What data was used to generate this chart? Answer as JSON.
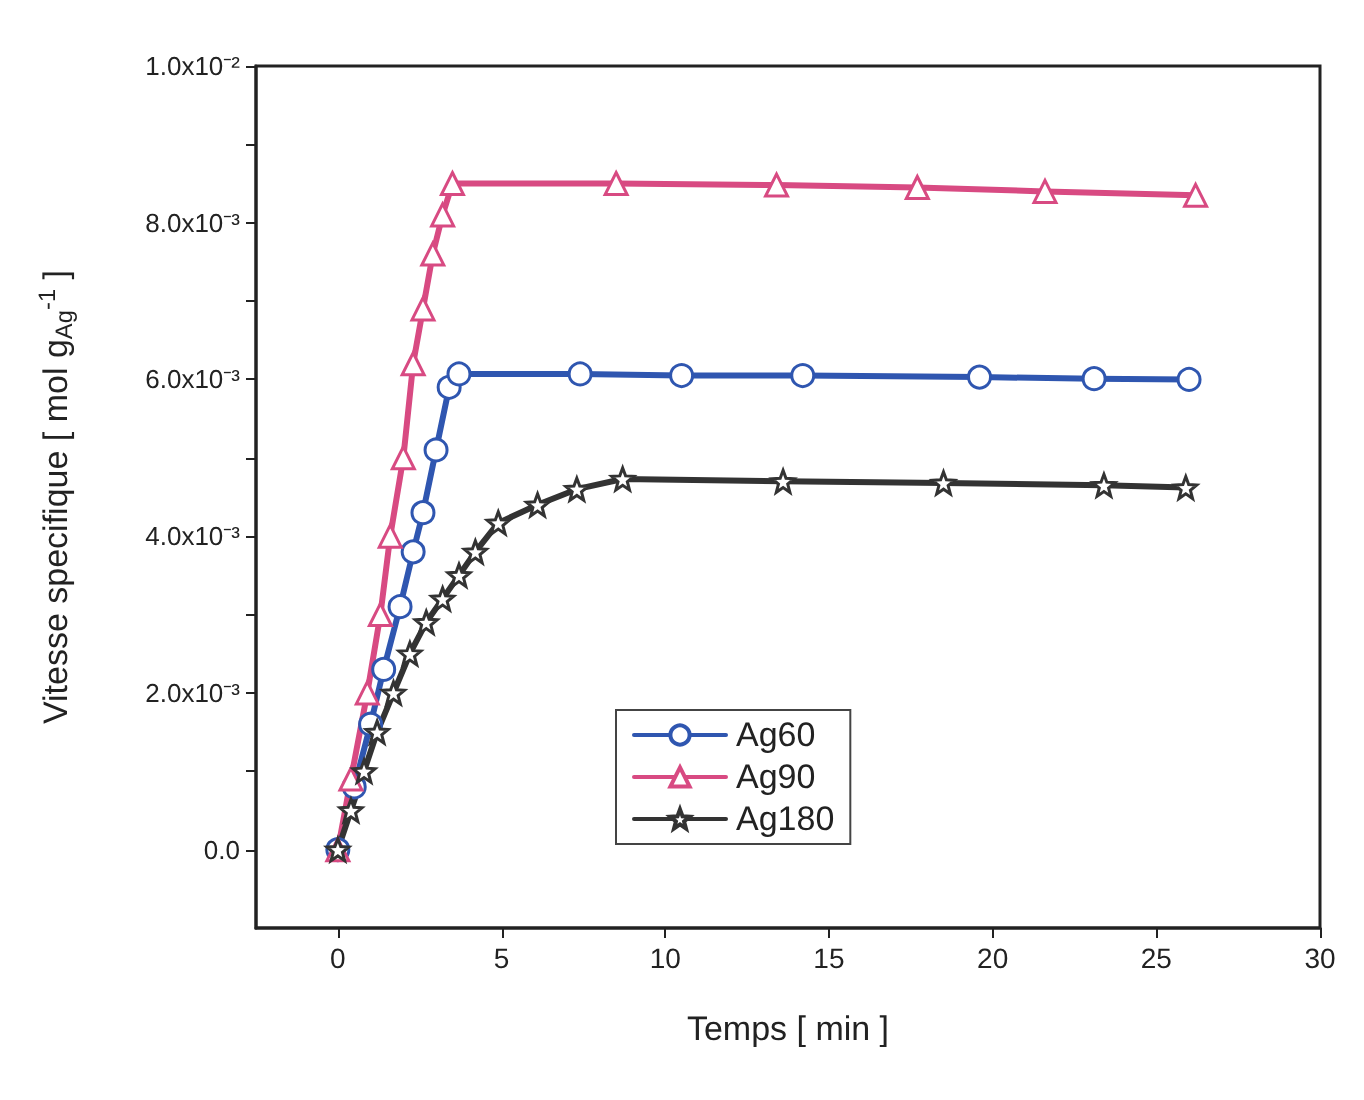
{
  "chart_data": {
    "type": "line",
    "xlabel": "Temps [ min ]",
    "ylabel": "Vitesse specifique [ mol g$_{Ag}$$^{-1}$ ]",
    "xlim": [
      -2.5,
      30
    ],
    "xticks": [
      0,
      5,
      10,
      15,
      20,
      25,
      30
    ],
    "ylim": [
      -0.001,
      0.01
    ],
    "yticks": [
      {
        "value": 0,
        "label": "0.0"
      },
      {
        "value": 0.001,
        "label": null
      },
      {
        "value": 0.002,
        "label": "2.0x10⁻³"
      },
      {
        "value": 0.003,
        "label": null
      },
      {
        "value": 0.004,
        "label": "4.0x10⁻³"
      },
      {
        "value": 0.005,
        "label": null
      },
      {
        "value": 0.006,
        "label": "6.0x10⁻³"
      },
      {
        "value": 0.007,
        "label": null
      },
      {
        "value": 0.008,
        "label": "8.0x10⁻³"
      },
      {
        "value": 0.009,
        "label": null
      },
      {
        "value": 0.01,
        "label": "1.0x10⁻²"
      }
    ],
    "grid": false,
    "legend": "bottom",
    "line_style": "solid",
    "series": [
      {
        "name": "Ag60",
        "color": "#2f56b0",
        "marker": "circle",
        "x": [
          0,
          0.5,
          1.0,
          1.4,
          1.9,
          2.3,
          2.6,
          3.0,
          3.4,
          3.7,
          7.4,
          10.5,
          14.2,
          19.6,
          23.1,
          26.0
        ],
        "values": [
          0,
          0.0008,
          0.0016,
          0.0023,
          0.0031,
          0.0038,
          0.0043,
          0.0051,
          0.0059,
          0.00607,
          0.00607,
          0.00605,
          0.00605,
          0.00603,
          0.00601,
          0.006
        ]
      },
      {
        "name": "Ag90",
        "color": "#d84a82",
        "marker": "triangle",
        "x": [
          0,
          0.4,
          0.9,
          1.3,
          1.6,
          2.0,
          2.3,
          2.6,
          2.9,
          3.2,
          3.5,
          8.5,
          13.4,
          17.7,
          21.6,
          26.2
        ],
        "values": [
          0,
          0.0009,
          0.002,
          0.003,
          0.004,
          0.005,
          0.0062,
          0.0069,
          0.0076,
          0.0081,
          0.0085,
          0.0085,
          0.00848,
          0.00845,
          0.0084,
          0.00835
        ]
      },
      {
        "name": "Ag180",
        "color": "#333333",
        "marker": "star",
        "x": [
          0,
          0.4,
          0.8,
          1.2,
          1.7,
          2.2,
          2.7,
          3.2,
          3.7,
          4.2,
          4.9,
          6.1,
          7.3,
          8.7,
          13.6,
          18.5,
          23.4,
          25.9
        ],
        "values": [
          0,
          0.0005,
          0.001,
          0.0015,
          0.002,
          0.0025,
          0.0029,
          0.0032,
          0.0035,
          0.0038,
          0.00417,
          0.0044,
          0.0046,
          0.00473,
          0.0047,
          0.00468,
          0.00465,
          0.00462
        ]
      }
    ]
  }
}
